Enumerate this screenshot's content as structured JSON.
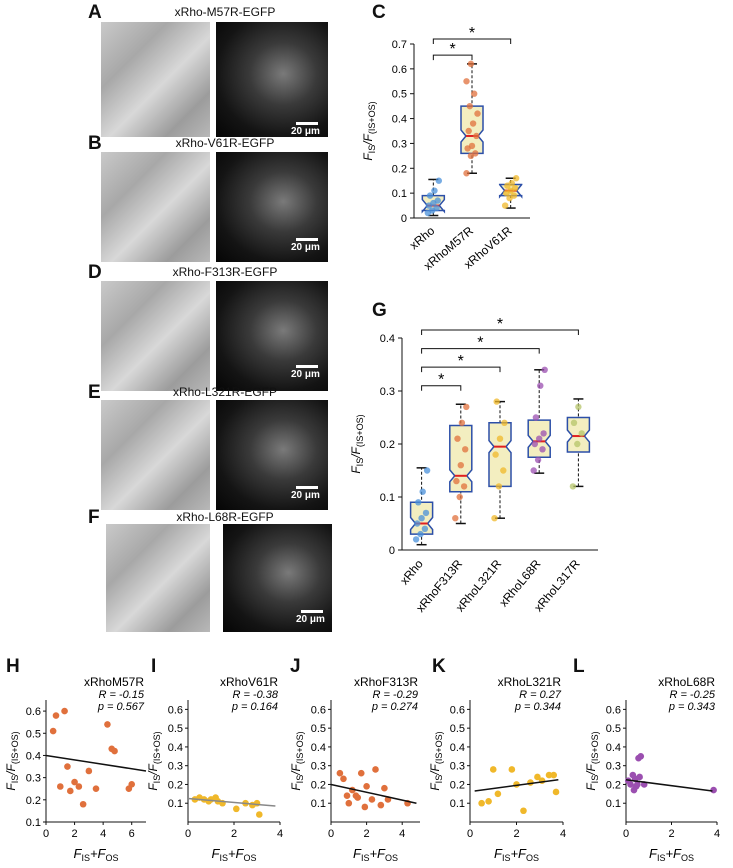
{
  "panels": {
    "A": {
      "letter": "A",
      "title": "xRho-M57R-EGFP",
      "scale": "20 μm"
    },
    "B": {
      "letter": "B",
      "title": "xRho-V61R-EGFP",
      "scale": "20 μm"
    },
    "D": {
      "letter": "D",
      "title": "xRho-F313R-EGFP",
      "scale": "20 μm"
    },
    "E": {
      "letter": "E",
      "title": "xRho-L321R-EGFP",
      "scale": "20 μm"
    },
    "F": {
      "letter": "F",
      "title": "xRho-L68R-EGFP",
      "scale": "20 μm"
    },
    "C": {
      "letter": "C"
    },
    "G": {
      "letter": "G"
    },
    "H": {
      "letter": "H"
    },
    "I": {
      "letter": "I"
    },
    "J": {
      "letter": "J"
    },
    "K": {
      "letter": "K"
    },
    "L": {
      "letter": "L"
    }
  },
  "colors": {
    "xRho": "#4a90d9",
    "xRhoM57R": "#e0703c",
    "xRhoV61R": "#f0b82a",
    "xRhoF313R": "#e0703c",
    "xRhoL321R": "#f0b82a",
    "xRhoL68R": "#9b4fb0",
    "xRhoL317R": "#b5c46a",
    "box_fill": "#f3eec0",
    "box_edge": "#2c4fa8",
    "median": "#e02020",
    "whisker": "#111111"
  },
  "chart_data": [
    {
      "id": "C",
      "type": "box",
      "ylabel_main": "F",
      "ylabel_sub1": "IS",
      "ylabel_slash": "/F",
      "ylabel_sub2": "(IS+OS)",
      "ylim": [
        0,
        0.7
      ],
      "yticks": [
        "0",
        "0.1",
        "0.2",
        "0.3",
        "0.4",
        "0.5",
        "0.6",
        "0.7"
      ],
      "categories": [
        "xRho",
        "xRhoM57R",
        "xRhoV61R"
      ],
      "boxes": [
        {
          "min": 0.01,
          "q1": 0.03,
          "median": 0.05,
          "q3": 0.09,
          "max": 0.155
        },
        {
          "min": 0.18,
          "q1": 0.26,
          "median": 0.33,
          "q3": 0.45,
          "max": 0.62
        },
        {
          "min": 0.04,
          "q1": 0.09,
          "median": 0.11,
          "q3": 0.135,
          "max": 0.16
        }
      ],
      "points": [
        [
          0.02,
          0.03,
          0.04,
          0.05,
          0.06,
          0.07,
          0.09,
          0.11,
          0.15
        ],
        [
          0.18,
          0.25,
          0.26,
          0.28,
          0.29,
          0.33,
          0.35,
          0.38,
          0.42,
          0.45,
          0.5,
          0.55,
          0.62
        ],
        [
          0.05,
          0.08,
          0.09,
          0.1,
          0.11,
          0.12,
          0.13,
          0.14,
          0.16
        ]
      ],
      "sig": [
        {
          "from": 0,
          "to": 1,
          "y": 0.655,
          "label": "*"
        },
        {
          "from": 0,
          "to": 2,
          "y": 0.72,
          "label": "*"
        }
      ]
    },
    {
      "id": "G",
      "type": "box",
      "ylabel_main": "F",
      "ylabel_sub1": "IS",
      "ylabel_slash": "/F",
      "ylabel_sub2": "(IS+OS)",
      "ylim": [
        0,
        0.4
      ],
      "yticks": [
        "0",
        "0.1",
        "0.2",
        "0.3",
        "0.4"
      ],
      "categories": [
        "xRho",
        "xRhoF313R",
        "xRhoL321R",
        "xRhoL68R",
        "xRhoL317R"
      ],
      "boxes": [
        {
          "min": 0.01,
          "q1": 0.03,
          "median": 0.05,
          "q3": 0.09,
          "max": 0.155
        },
        {
          "min": 0.05,
          "q1": 0.11,
          "median": 0.14,
          "q3": 0.235,
          "max": 0.275
        },
        {
          "min": 0.06,
          "q1": 0.12,
          "median": 0.195,
          "q3": 0.24,
          "max": 0.28
        },
        {
          "min": 0.145,
          "q1": 0.175,
          "median": 0.205,
          "q3": 0.245,
          "max": 0.34
        },
        {
          "min": 0.12,
          "q1": 0.185,
          "median": 0.215,
          "q3": 0.25,
          "max": 0.285
        }
      ],
      "points": [
        [
          0.02,
          0.03,
          0.04,
          0.05,
          0.06,
          0.07,
          0.09,
          0.11,
          0.15
        ],
        [
          0.06,
          0.1,
          0.12,
          0.13,
          0.16,
          0.19,
          0.21,
          0.24,
          0.27
        ],
        [
          0.06,
          0.12,
          0.15,
          0.18,
          0.21,
          0.24,
          0.28
        ],
        [
          0.15,
          0.17,
          0.19,
          0.2,
          0.21,
          0.22,
          0.25,
          0.31,
          0.34
        ],
        [
          0.12,
          0.2,
          0.22,
          0.24,
          0.27
        ]
      ],
      "sig": [
        {
          "from": 0,
          "to": 1,
          "y": 0.31,
          "label": "*"
        },
        {
          "from": 0,
          "to": 2,
          "y": 0.345,
          "label": "*"
        },
        {
          "from": 0,
          "to": 3,
          "y": 0.38,
          "label": "*"
        },
        {
          "from": 0,
          "to": 4,
          "y": 0.415,
          "label": "*"
        }
      ]
    },
    {
      "id": "H",
      "type": "scatter",
      "title": "xRhoM57R",
      "r_text": "R = -0.15",
      "p_text": "p = 0.567",
      "color_key": "xRhoM57R",
      "xlim": [
        0,
        7
      ],
      "ylim": [
        0.1,
        0.65
      ],
      "xticks": [
        0,
        2,
        4,
        6
      ],
      "yticks": [
        0.1,
        0.2,
        0.3,
        0.4,
        0.5,
        0.6
      ],
      "x": [
        0.5,
        0.7,
        1.0,
        1.3,
        1.5,
        1.7,
        2.0,
        2.3,
        2.6,
        3.0,
        3.5,
        4.3,
        4.6,
        4.8,
        5.8,
        6.0
      ],
      "y": [
        0.51,
        0.58,
        0.26,
        0.6,
        0.35,
        0.24,
        0.28,
        0.26,
        0.18,
        0.33,
        0.25,
        0.54,
        0.43,
        0.42,
        0.25,
        0.27
      ],
      "fit": [
        [
          0,
          0.4
        ],
        [
          7,
          0.33
        ]
      ],
      "fit_color": "#111111"
    },
    {
      "id": "I",
      "type": "scatter",
      "title": "xRhoV61R",
      "r_text": "R = -0.38",
      "p_text": "p = 0.164",
      "color_key": "xRhoV61R",
      "xlim": [
        0,
        4
      ],
      "ylim": [
        0,
        0.65
      ],
      "xticks": [
        0,
        2,
        4
      ],
      "yticks": [
        0.1,
        0.2,
        0.3,
        0.4,
        0.5,
        0.6
      ],
      "x": [
        0.3,
        0.5,
        0.7,
        0.9,
        1.0,
        1.2,
        1.3,
        1.5,
        2.1,
        2.5,
        2.8,
        3.0,
        3.1
      ],
      "y": [
        0.12,
        0.13,
        0.12,
        0.11,
        0.12,
        0.13,
        0.11,
        0.1,
        0.07,
        0.1,
        0.09,
        0.1,
        0.04
      ],
      "fit": [
        [
          0,
          0.125
        ],
        [
          3.8,
          0.085
        ]
      ],
      "fit_color": "#888888"
    },
    {
      "id": "J",
      "type": "scatter",
      "title": "xRhoF313R",
      "r_text": "R = -0.29",
      "p_text": "p = 0.274",
      "color_key": "xRhoF313R",
      "xlim": [
        0,
        5
      ],
      "ylim": [
        0,
        0.65
      ],
      "xticks": [
        0,
        2,
        4
      ],
      "yticks": [
        0.1,
        0.2,
        0.3,
        0.4,
        0.5,
        0.6
      ],
      "x": [
        0.5,
        0.7,
        1.0,
        1.2,
        1.4,
        1.5,
        1.7,
        2.0,
        2.3,
        2.5,
        2.8,
        3.0,
        3.2,
        4.3,
        0.9,
        1.9
      ],
      "y": [
        0.26,
        0.23,
        0.1,
        0.17,
        0.14,
        0.13,
        0.26,
        0.19,
        0.12,
        0.28,
        0.09,
        0.18,
        0.12,
        0.1,
        0.14,
        0.08
      ],
      "fit": [
        [
          0,
          0.2
        ],
        [
          4.8,
          0.1
        ]
      ],
      "fit_color": "#111111"
    },
    {
      "id": "K",
      "type": "scatter",
      "title": "xRhoL321R",
      "r_text": "R = 0.27",
      "p_text": "p = 0.344",
      "color_key": "xRhoL321R",
      "xlim": [
        0,
        4
      ],
      "ylim": [
        0,
        0.65
      ],
      "xticks": [
        0,
        2,
        4
      ],
      "yticks": [
        0.1,
        0.2,
        0.3,
        0.4,
        0.5,
        0.6
      ],
      "x": [
        0.5,
        0.8,
        1.0,
        1.2,
        1.8,
        2.0,
        2.3,
        2.6,
        2.9,
        3.1,
        3.4,
        3.6,
        3.7
      ],
      "y": [
        0.1,
        0.11,
        0.28,
        0.15,
        0.28,
        0.2,
        0.06,
        0.21,
        0.24,
        0.22,
        0.25,
        0.25,
        0.16
      ],
      "fit": [
        [
          0.2,
          0.165
        ],
        [
          3.8,
          0.225
        ]
      ],
      "fit_color": "#111111"
    },
    {
      "id": "L",
      "type": "scatter",
      "title": "xRhoL68R",
      "r_text": "R = -0.25",
      "p_text": "p = 0.343",
      "color_key": "xRhoL68R",
      "xlim": [
        0,
        4
      ],
      "ylim": [
        0,
        0.65
      ],
      "xticks": [
        0,
        2,
        4
      ],
      "yticks": [
        0.1,
        0.2,
        0.3,
        0.4,
        0.5,
        0.6
      ],
      "x": [
        0.1,
        0.2,
        0.3,
        0.35,
        0.4,
        0.45,
        0.5,
        0.55,
        0.6,
        0.65,
        0.8,
        3.85
      ],
      "y": [
        0.22,
        0.2,
        0.25,
        0.17,
        0.23,
        0.19,
        0.2,
        0.34,
        0.24,
        0.35,
        0.2,
        0.17
      ],
      "fit": [
        [
          0,
          0.225
        ],
        [
          3.8,
          0.165
        ]
      ],
      "fit_color": "#111111"
    }
  ]
}
